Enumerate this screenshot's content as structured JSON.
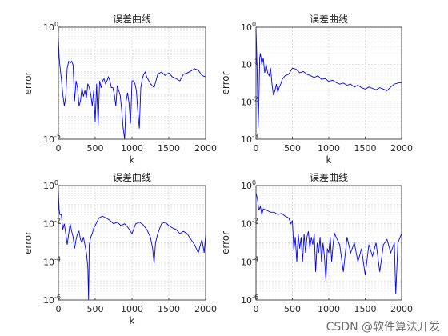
{
  "watermark": "CSDN @软件算法开发",
  "chart_data": [
    {
      "type": "line",
      "title": "误差曲线",
      "xlabel": "k",
      "ylabel": "error",
      "xlim": [
        0,
        2000
      ],
      "xticks": [
        "0",
        "500",
        "1000",
        "1500",
        "2000"
      ],
      "yscale": "log",
      "ylim": [
        1e-05,
        1
      ],
      "yticks": [
        {
          "base": "10",
          "exp": "-5"
        },
        {
          "base": "10",
          "exp": "0"
        }
      ],
      "grid": true,
      "series_color": "#0000ff",
      "x": [
        0,
        10,
        20,
        40,
        60,
        80,
        100,
        120,
        140,
        160,
        180,
        200,
        220,
        240,
        260,
        280,
        300,
        320,
        340,
        360,
        380,
        400,
        420,
        440,
        460,
        480,
        500,
        520,
        540,
        560,
        580,
        600,
        620,
        640,
        660,
        680,
        700,
        720,
        740,
        760,
        780,
        800,
        820,
        840,
        860,
        880,
        900,
        920,
        940,
        960,
        980,
        1000,
        1020,
        1040,
        1060,
        1080,
        1100,
        1120,
        1140,
        1160,
        1180,
        1200,
        1250,
        1300,
        1350,
        1400,
        1450,
        1500,
        1550,
        1600,
        1650,
        1700,
        1750,
        1800,
        1850,
        1900,
        1950,
        2000
      ],
      "y": [
        0.3,
        0.05,
        0.02,
        0.005,
        0.001,
        0.0003,
        0.0008,
        0.015,
        0.03,
        0.025,
        0.03,
        0.02,
        0.0005,
        0.004,
        0.002,
        0.0003,
        0.0005,
        0.002,
        0.0008,
        0.0015,
        0.0007,
        0.003,
        0.002,
        0.001,
        0.0003,
        0.0015,
        6e-05,
        0.003,
        4e-05,
        0.004,
        0.002,
        0.004,
        0.005,
        0.003,
        0.004,
        0.006,
        0.004,
        0.002,
        0.002,
        0.001,
        0.0003,
        0.0025,
        0.0015,
        0.0009,
        0.0002,
        3e-05,
        1e-05,
        0.0005,
        0.0012,
        0.0004,
        5e-05,
        0.004,
        0.004,
        0.003,
        0.0015,
        0.00015,
        3e-05,
        0.002,
        0.005,
        0.008,
        0.01,
        0.006,
        0.003,
        0.002,
        0.008,
        0.01,
        0.007,
        0.009,
        0.006,
        0.005,
        0.004,
        0.008,
        0.009,
        0.011,
        0.014,
        0.012,
        0.007,
        0.006
      ]
    },
    {
      "type": "line",
      "title": "误差曲线",
      "xlabel": "k",
      "ylabel": "error",
      "xlim": [
        0,
        2000
      ],
      "xticks": [
        "0",
        "500",
        "1000",
        "1500",
        "2000"
      ],
      "yscale": "log",
      "ylim": [
        0.001,
        1
      ],
      "yticks": [
        {
          "base": "10",
          "exp": "-3"
        },
        {
          "base": "10",
          "exp": "-2"
        },
        {
          "base": "10",
          "exp": "-1"
        },
        {
          "base": "10",
          "exp": "0"
        }
      ],
      "grid": true,
      "series_color": "#0000ff",
      "x": [
        0,
        10,
        20,
        30,
        40,
        50,
        60,
        80,
        100,
        120,
        140,
        160,
        180,
        200,
        220,
        240,
        260,
        280,
        300,
        320,
        340,
        360,
        400,
        450,
        500,
        550,
        600,
        650,
        700,
        750,
        800,
        850,
        900,
        950,
        1000,
        1050,
        1100,
        1150,
        1200,
        1250,
        1300,
        1350,
        1400,
        1450,
        1500,
        1550,
        1600,
        1650,
        1700,
        1750,
        1800,
        1850,
        1900,
        1950,
        2000
      ],
      "y": [
        0.9,
        0.2,
        0.03,
        0.002,
        0.01,
        0.15,
        0.2,
        0.1,
        0.15,
        0.06,
        0.1,
        0.06,
        0.05,
        0.08,
        0.03,
        0.015,
        0.02,
        0.03,
        0.018,
        0.025,
        0.03,
        0.04,
        0.05,
        0.055,
        0.08,
        0.075,
        0.06,
        0.065,
        0.055,
        0.05,
        0.045,
        0.05,
        0.04,
        0.042,
        0.035,
        0.038,
        0.033,
        0.03,
        0.032,
        0.028,
        0.03,
        0.025,
        0.028,
        0.024,
        0.022,
        0.025,
        0.023,
        0.021,
        0.024,
        0.022,
        0.02,
        0.025,
        0.03,
        0.032,
        0.033
      ]
    },
    {
      "type": "line",
      "title": "误差曲线",
      "xlabel": "k",
      "ylabel": "error",
      "xlim": [
        0,
        2000
      ],
      "xticks": [
        "0",
        "500",
        "1000",
        "1500",
        "2000"
      ],
      "yscale": "log",
      "ylim": [
        1e-06,
        1
      ],
      "yticks": [
        {
          "base": "10",
          "exp": "-6"
        },
        {
          "base": "10",
          "exp": "-4"
        },
        {
          "base": "10",
          "exp": "-2"
        },
        {
          "base": "10",
          "exp": "0"
        }
      ],
      "grid": true,
      "series_color": "#0000ff",
      "x": [
        0,
        10,
        20,
        40,
        60,
        80,
        100,
        120,
        140,
        160,
        180,
        200,
        220,
        240,
        260,
        280,
        300,
        320,
        340,
        360,
        380,
        400,
        410,
        420,
        440,
        460,
        480,
        500,
        550,
        600,
        650,
        700,
        750,
        800,
        850,
        900,
        950,
        1000,
        1050,
        1100,
        1150,
        1200,
        1250,
        1280,
        1300,
        1320,
        1350,
        1400,
        1450,
        1500,
        1550,
        1600,
        1650,
        1700,
        1750,
        1800,
        1850,
        1900,
        1950,
        1980,
        2000
      ],
      "y": [
        0.5,
        0.06,
        0.03,
        0.03,
        0.005,
        0.01,
        0.003,
        0.0008,
        0.003,
        0.01,
        0.004,
        0.002,
        0.0005,
        0.0015,
        0.003,
        0.004,
        0.0015,
        0.001,
        0.002,
        0.0008,
        0.0003,
        5e-05,
        1e-06,
        0.0008,
        0.002,
        0.003,
        0.006,
        0.008,
        0.02,
        0.025,
        0.02,
        0.015,
        0.01,
        0.012,
        0.008,
        0.01,
        0.006,
        0.003,
        0.01,
        0.012,
        0.009,
        0.005,
        0.002,
        0.0005,
        8e-05,
        0.001,
        0.003,
        0.01,
        0.012,
        0.008,
        0.006,
        0.005,
        0.003,
        0.004,
        0.003,
        0.0015,
        0.0008,
        0.0003,
        0.0015,
        0.0003,
        0.0025
      ]
    },
    {
      "type": "line",
      "title": "误差曲线",
      "xlabel": "",
      "ylabel": "error",
      "xlim": [
        0,
        2000
      ],
      "xticks": [
        "0",
        "500",
        "1000",
        "1500",
        "2000"
      ],
      "yscale": "log",
      "ylim": [
        1e-06,
        1
      ],
      "yticks": [
        {
          "base": "10",
          "exp": "-6"
        },
        {
          "base": "10",
          "exp": "-4"
        },
        {
          "base": "10",
          "exp": "-2"
        },
        {
          "base": "10",
          "exp": "0"
        }
      ],
      "grid": true,
      "series_color": "#0000ff",
      "x": [
        0,
        20,
        40,
        60,
        80,
        100,
        150,
        200,
        250,
        300,
        350,
        400,
        450,
        480,
        500,
        520,
        540,
        560,
        580,
        600,
        620,
        640,
        660,
        680,
        700,
        720,
        740,
        760,
        780,
        800,
        820,
        840,
        860,
        880,
        900,
        920,
        940,
        960,
        980,
        1000,
        1020,
        1040,
        1060,
        1080,
        1100,
        1150,
        1200,
        1250,
        1300,
        1350,
        1400,
        1450,
        1500,
        1550,
        1600,
        1650,
        1700,
        1750,
        1800,
        1850,
        1900,
        1920,
        1950,
        1980,
        2000
      ],
      "y": [
        0.4,
        0.2,
        0.05,
        0.08,
        0.03,
        0.06,
        0.05,
        0.04,
        0.04,
        0.03,
        0.035,
        0.025,
        0.02,
        0.01,
        0.015,
        0.0004,
        0.002,
        0.0001,
        0.003,
        0.0005,
        0.002,
        0.0001,
        0.003,
        0.0003,
        0.002,
        0.004,
        0.0005,
        0.002,
        0.0008,
        0.003,
        3e-05,
        0.001,
        0.0003,
        0.002,
        0.0001,
        0.001,
        0.0002,
        1e-05,
        0.0005,
        0.0003,
        0.002,
        0.0001,
        0.001,
        0.003,
        0.002,
        0.0008,
        3e-05,
        0.002,
        0.0003,
        0.001,
        0.0001,
        0.0005,
        2e-05,
        0.0008,
        0.0002,
        0.001,
        3e-05,
        0.0008,
        0.0015,
        0.0003,
        0.001,
        2e-06,
        0.001,
        0.002,
        0.003
      ]
    }
  ]
}
